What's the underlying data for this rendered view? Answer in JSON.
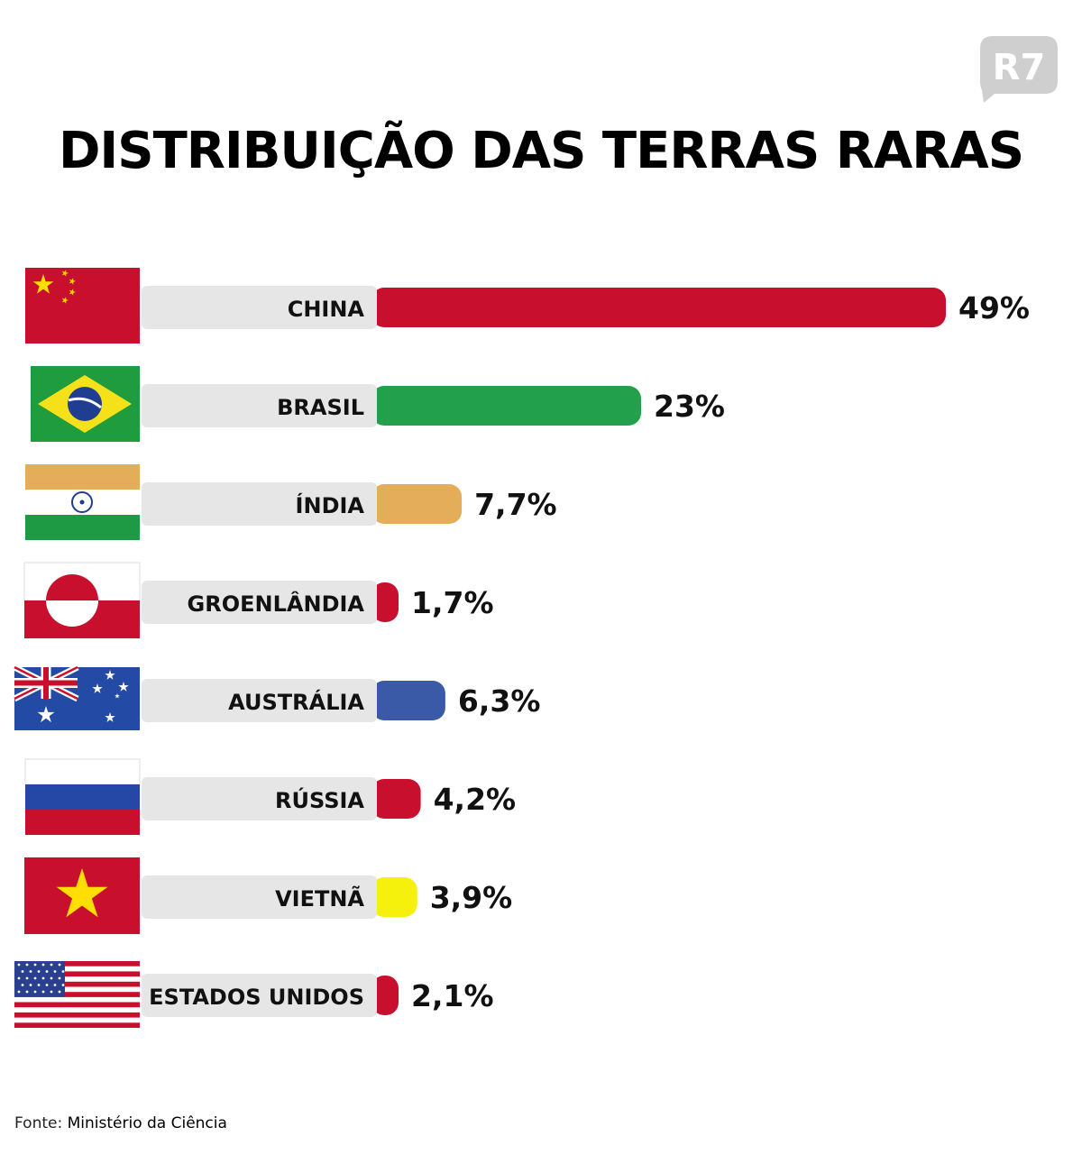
{
  "title": "DISTRIBUIÇÃO DAS TERRAS RARAS",
  "logo_text": "R7",
  "source": {
    "label": "Fonte:",
    "value": "Ministério da Ciência"
  },
  "chart_data": {
    "type": "bar",
    "orientation": "horizontal",
    "categories": [
      "CHINA",
      "BRASIL",
      "ÍNDIA",
      "GROENLÂNDIA",
      "AUSTRÁLIA",
      "RÚSSIA",
      "VIETNÃ",
      "ESTADOS UNIDOS"
    ],
    "values": [
      49,
      23,
      7.7,
      1.7,
      6.3,
      4.2,
      3.9,
      2.1
    ],
    "value_labels": [
      "49%",
      "23%",
      "7,7%",
      "1,7%",
      "6,3%",
      "4,2%",
      "3,9%",
      "2,1%"
    ],
    "bar_colors": [
      "#c8102e",
      "#22a04b",
      "#e3ad5a",
      "#c8102e",
      "#3a5aa8",
      "#c8102e",
      "#f5f00c",
      "#c8102e"
    ],
    "flags": [
      "china-flag-icon",
      "brazil-flag-icon",
      "india-flag-icon",
      "greenland-flag-icon",
      "australia-flag-icon",
      "russia-flag-icon",
      "vietnam-flag-icon",
      "usa-flag-icon"
    ],
    "grid": false
  }
}
